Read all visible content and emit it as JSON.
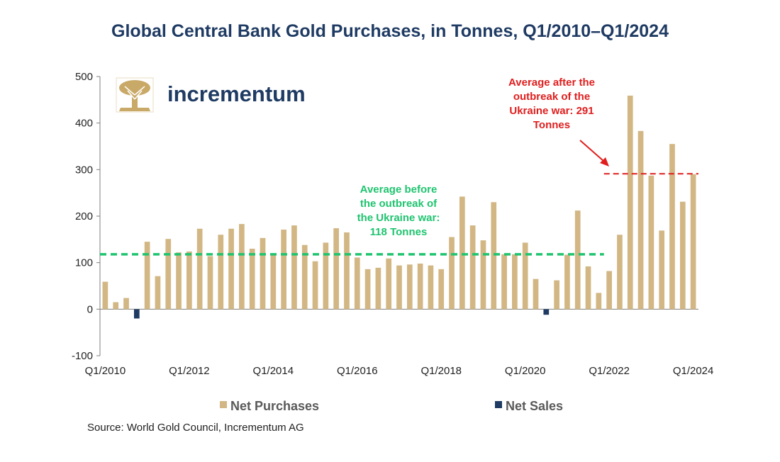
{
  "chart_data": {
    "type": "bar",
    "title": "Global Central Bank Gold Purchases, in Tonnes, Q1/2010–Q1/2024",
    "xlabel": "",
    "ylabel": "",
    "ylim": [
      -100,
      500
    ],
    "yticks": [
      "500",
      "400",
      "300",
      "200",
      "100",
      "0",
      "-100"
    ],
    "ytick_values": [
      500,
      400,
      300,
      200,
      100,
      0,
      -100
    ],
    "xtick_labels": [
      "Q1/2010",
      "Q1/2012",
      "Q1/2014",
      "Q1/2016",
      "Q1/2018",
      "Q1/2020",
      "Q1/2022",
      "Q1/2024"
    ],
    "categories": [
      "Q1/2010",
      "Q2/2010",
      "Q3/2010",
      "Q4/2010",
      "Q1/2011",
      "Q2/2011",
      "Q3/2011",
      "Q4/2011",
      "Q1/2012",
      "Q2/2012",
      "Q3/2012",
      "Q4/2012",
      "Q1/2013",
      "Q2/2013",
      "Q3/2013",
      "Q4/2013",
      "Q1/2014",
      "Q2/2014",
      "Q3/2014",
      "Q4/2014",
      "Q1/2015",
      "Q2/2015",
      "Q3/2015",
      "Q4/2015",
      "Q1/2016",
      "Q2/2016",
      "Q3/2016",
      "Q4/2016",
      "Q1/2017",
      "Q2/2017",
      "Q3/2017",
      "Q4/2017",
      "Q1/2018",
      "Q2/2018",
      "Q3/2018",
      "Q4/2018",
      "Q1/2019",
      "Q2/2019",
      "Q3/2019",
      "Q4/2019",
      "Q1/2020",
      "Q2/2020",
      "Q3/2020",
      "Q4/2020",
      "Q1/2021",
      "Q2/2021",
      "Q3/2021",
      "Q4/2021",
      "Q1/2022",
      "Q2/2022",
      "Q3/2022",
      "Q4/2022",
      "Q1/2023",
      "Q2/2023",
      "Q3/2023",
      "Q4/2023",
      "Q1/2024"
    ],
    "series": [
      {
        "name": "Net Purchases",
        "color": "#d2b784",
        "values": [
          59,
          15,
          24,
          0,
          145,
          71,
          151,
          122,
          124,
          173,
          114,
          160,
          173,
          183,
          130,
          153,
          120,
          171,
          180,
          138,
          103,
          143,
          174,
          165,
          111,
          86,
          89,
          109,
          94,
          96,
          98,
          94,
          86,
          155,
          242,
          180,
          148,
          230,
          118,
          118,
          143,
          65,
          0,
          62,
          117,
          212,
          92,
          35,
          82,
          160,
          459,
          383,
          287,
          169,
          355,
          231,
          290
        ]
      },
      {
        "name": "Net Sales",
        "color": "#1f3b63",
        "values": [
          0,
          0,
          0,
          -20,
          0,
          0,
          0,
          0,
          0,
          0,
          0,
          0,
          0,
          0,
          0,
          0,
          0,
          0,
          0,
          0,
          0,
          0,
          0,
          0,
          0,
          0,
          0,
          0,
          0,
          0,
          0,
          0,
          0,
          0,
          0,
          0,
          0,
          0,
          0,
          0,
          0,
          0,
          -12,
          0,
          0,
          0,
          0,
          0,
          0,
          0,
          0,
          0,
          0,
          0,
          0,
          0,
          0
        ]
      }
    ],
    "reference_lines": [
      {
        "name": "Average before war",
        "value": 118,
        "color": "#1fc46f",
        "from_category": "Q1/2010",
        "to_category": "Q4/2021"
      },
      {
        "name": "Average after war",
        "value": 291,
        "color": "#e01e1e",
        "from_category": "Q1/2022",
        "to_category": "Q1/2024"
      }
    ],
    "annotations": {
      "before": [
        "Average before",
        "the outbreak of",
        "the Ukraine war:",
        "118 Tonnes"
      ],
      "after": [
        "Average after the",
        "outbreak of the",
        "Ukraine war: 291",
        "Tonnes"
      ]
    },
    "legend": {
      "position": "bottom",
      "net_purchases": "Net Purchases",
      "net_sales": "Net Sales"
    },
    "source": "Source: World Gold Council, Incrementum AG",
    "logo_text": "incrementum",
    "colors": {
      "purchases": "#d2b784",
      "sales": "#1f3b63",
      "green": "#1fc46f",
      "red": "#e01e1e",
      "title": "#1f3b63"
    }
  }
}
